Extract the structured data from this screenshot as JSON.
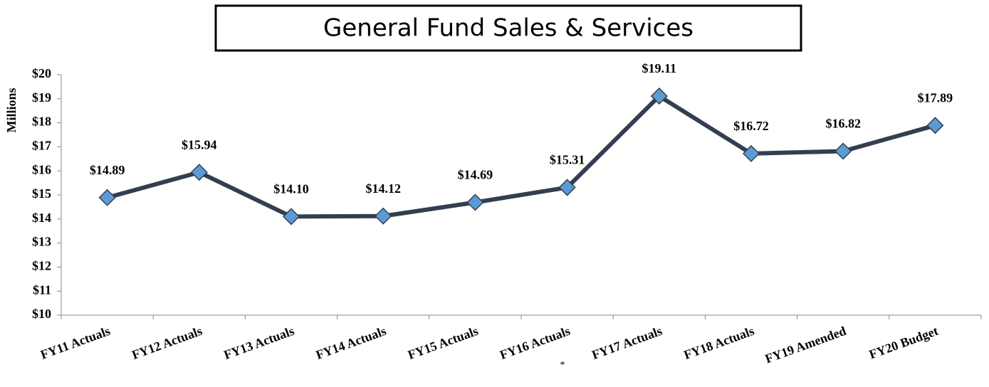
{
  "chart_data": {
    "type": "line",
    "title": "General Fund Sales & Services",
    "y_label": "Millions",
    "annotation": "*",
    "categories": [
      "FY11 Actuals",
      "FY12 Actuals",
      "FY13 Actuals",
      "FY14 Actuals",
      "FY15 Actuals",
      "FY16 Actuals",
      "FY17 Actuals",
      "FY18 Actuals",
      "FY19 Amended",
      "FY20 Budget"
    ],
    "values": [
      14.89,
      15.94,
      14.1,
      14.12,
      14.69,
      15.31,
      19.11,
      16.72,
      16.82,
      17.89
    ],
    "value_labels": [
      "$14.89",
      "$15.94",
      "$14.10",
      "$14.12",
      "$14.69",
      "$15.31",
      "$19.11",
      "$16.72",
      "$16.82",
      "$17.89"
    ],
    "color": "#333f50",
    "marker_color": "#5b9bd5",
    "ylim": [
      10,
      20
    ],
    "yticks": [
      {
        "value": 10,
        "label": "$10"
      },
      {
        "value": 11,
        "label": "$11"
      },
      {
        "value": 12,
        "label": "$12"
      },
      {
        "value": 13,
        "label": "$13"
      },
      {
        "value": 14,
        "label": "$14"
      },
      {
        "value": 15,
        "label": "$15"
      },
      {
        "value": 16,
        "label": "$16"
      },
      {
        "value": 17,
        "label": "$17"
      },
      {
        "value": 18,
        "label": "$18"
      },
      {
        "value": 19,
        "label": "$19"
      },
      {
        "value": 20,
        "label": "$20"
      }
    ],
    "grid": false
  }
}
